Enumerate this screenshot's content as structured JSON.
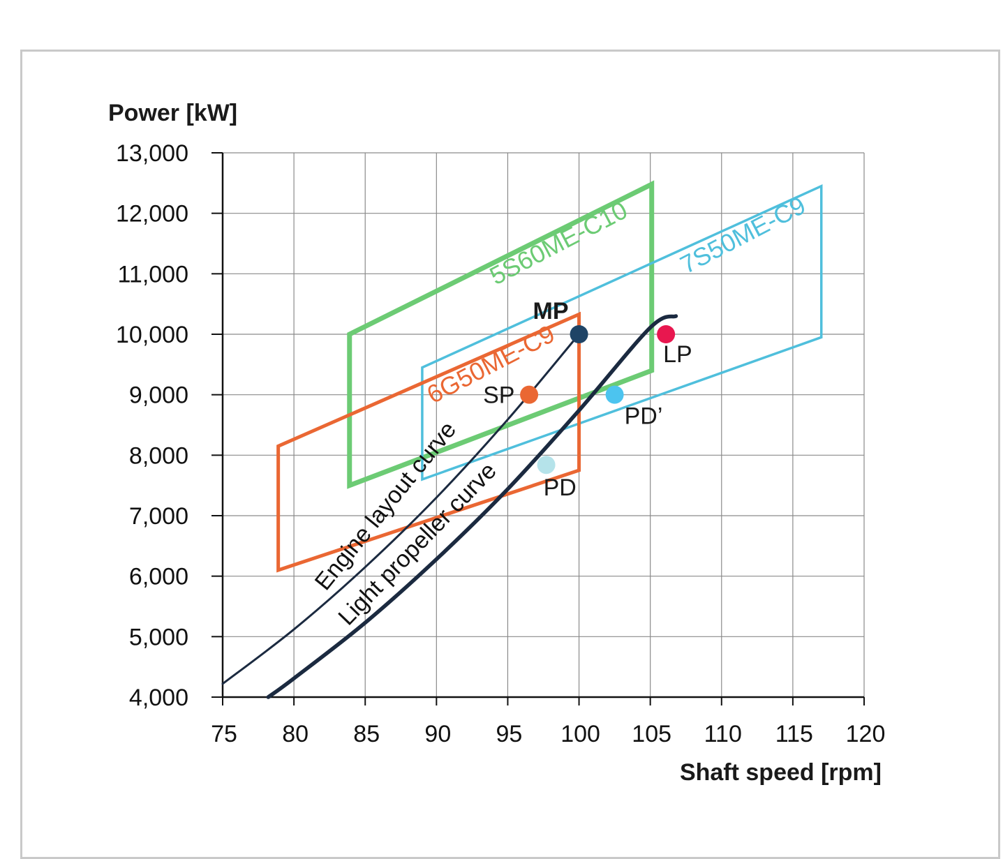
{
  "chart_data": {
    "type": "line",
    "xlabel": "Shaft speed [rpm]",
    "ylabel": "Power [kW]",
    "xlim": [
      75,
      120
    ],
    "ylim": [
      4000,
      13000
    ],
    "grid": true,
    "x_ticks": [
      "75",
      "80",
      "85",
      "90",
      "95",
      "100",
      "105",
      "110",
      "115",
      "120"
    ],
    "y_ticks": [
      "4,000",
      "5,000",
      "6,000",
      "7,000",
      "8,000",
      "9,000",
      "10,000",
      "11,000",
      "12,000",
      "13,000"
    ],
    "layout_regions": [
      {
        "name": "5S60ME-C10",
        "color": "#6ccb74",
        "corners": [
          [
            83.9,
            7500
          ],
          [
            83.9,
            10000
          ],
          [
            105.1,
            12480
          ],
          [
            105.1,
            9400
          ]
        ]
      },
      {
        "name": "7S50ME-C9",
        "color": "#4fbfdc",
        "corners": [
          [
            89,
            7600
          ],
          [
            89,
            9450
          ],
          [
            117,
            12450
          ],
          [
            117,
            9950
          ]
        ]
      },
      {
        "name": "6G50ME-C9",
        "color": "#ea6733",
        "corners": [
          [
            78.9,
            6100
          ],
          [
            78.9,
            8150
          ],
          [
            100,
            10330
          ],
          [
            100,
            7750
          ]
        ]
      }
    ],
    "series": [
      {
        "name": "Engine layout curve",
        "color": "#1b2a40",
        "x": [
          75,
          80,
          85,
          90,
          95,
          100
        ],
        "y": [
          4220,
          5120,
          6150,
          7300,
          8590,
          10000
        ]
      },
      {
        "name": "Light propeller curve",
        "color": "#1b2a40",
        "x": [
          78.2,
          80,
          85,
          90,
          95,
          100,
          105,
          106.8
        ],
        "y": [
          4000,
          4310,
          5230,
          6280,
          7440,
          8740,
          10110,
          10300
        ]
      }
    ],
    "points": [
      {
        "label": "MP",
        "x": 100,
        "y": 10000,
        "color": "#1f4466",
        "bold": true
      },
      {
        "label": "SP",
        "x": 96.5,
        "y": 9000,
        "color": "#ea6733",
        "bold": false
      },
      {
        "label": "LP",
        "x": 106.1,
        "y": 10000,
        "color": "#e8174f",
        "bold": false
      },
      {
        "label": "PD’",
        "x": 102.5,
        "y": 9000,
        "color": "#4cc4ef",
        "bold": false
      },
      {
        "label": "PD",
        "x": 97.7,
        "y": 7840,
        "color": "#b5e3ea",
        "bold": false
      }
    ]
  }
}
